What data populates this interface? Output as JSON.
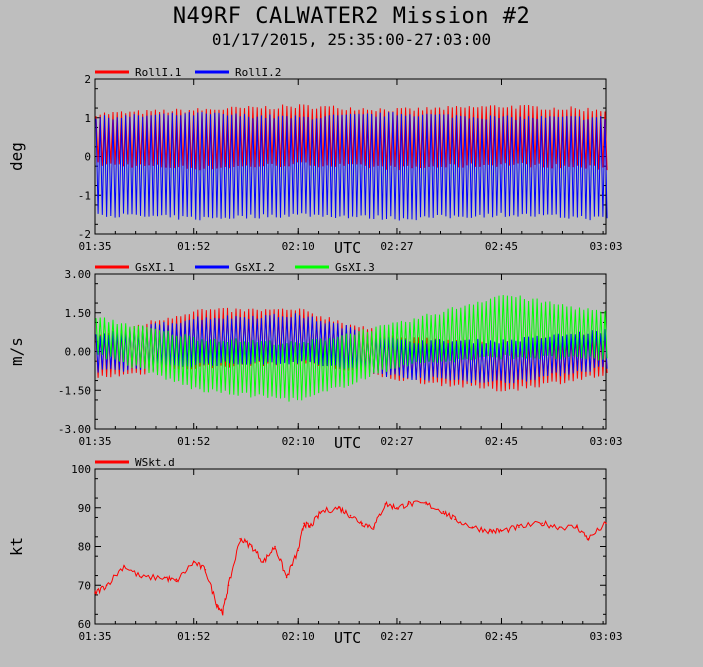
{
  "title": "N49RF CALWATER2 Mission #2",
  "subtitle": "01/17/2015, 25:35:00-27:03:00",
  "xaxis": {
    "label": "UTC",
    "ticks": [
      "01:35",
      "01:52",
      "02:10",
      "02:27",
      "02:45",
      "03:03"
    ]
  },
  "colors": {
    "red": "#ff0000",
    "blue": "#0000ff",
    "green": "#00ff00",
    "background": "#bebebe"
  },
  "chart_data": [
    {
      "type": "line",
      "ylabel": "deg",
      "ylim": [
        -2,
        2
      ],
      "yticks": [
        "2",
        "1",
        "0",
        "-1",
        "-2"
      ],
      "x": [
        "01:35",
        "01:52",
        "02:10",
        "02:27",
        "02:45",
        "03:03"
      ],
      "series": [
        {
          "name": "RollI.1",
          "color": "#ff0000",
          "upper": [
            1.1,
            1.2,
            1.3,
            1.2,
            1.3,
            1.2
          ],
          "lower": [
            -0.2,
            -0.3,
            -0.2,
            -0.3,
            -0.2,
            -0.3
          ]
        },
        {
          "name": "RollI.2",
          "color": "#0000ff",
          "upper": [
            1.0,
            1.1,
            1.0,
            1.1,
            1.0,
            1.0
          ],
          "lower": [
            -1.5,
            -1.6,
            -1.5,
            -1.6,
            -1.5,
            -1.6
          ]
        }
      ]
    },
    {
      "type": "line",
      "ylabel": "m/s",
      "ylim": [
        -3,
        3
      ],
      "yticks": [
        "3.00",
        "1.50",
        "0.00",
        "-1.50",
        "-3.00"
      ],
      "x": [
        "01:35",
        "01:52",
        "02:10",
        "02:27",
        "02:45",
        "03:03"
      ],
      "series": [
        {
          "name": "GsXI.1",
          "color": "#ff0000",
          "center": [
            -0.2,
            0.5,
            0.6,
            -0.3,
            -0.6,
            -0.1
          ],
          "amplitude": [
            0.8,
            1.1,
            1.0,
            0.8,
            0.9,
            0.8
          ]
        },
        {
          "name": "GsXI.2",
          "color": "#0000ff",
          "center": [
            -0.1,
            0.4,
            0.5,
            -0.3,
            -0.4,
            0.1
          ],
          "amplitude": [
            0.7,
            0.9,
            0.9,
            0.7,
            0.8,
            0.7
          ]
        },
        {
          "name": "GsXI.3",
          "color": "#00ff00",
          "center": [
            0.6,
            -0.5,
            -0.8,
            0.3,
            1.0,
            0.6
          ],
          "amplitude": [
            0.7,
            1.0,
            1.1,
            0.8,
            1.2,
            0.9
          ]
        }
      ]
    },
    {
      "type": "line",
      "ylabel": "kt",
      "ylim": [
        60,
        100
      ],
      "yticks": [
        "100",
        "90",
        "80",
        "70",
        "60"
      ],
      "series": [
        {
          "name": "WSkt.d",
          "color": "#ff0000",
          "x": [
            "01:35",
            "01:37",
            "01:40",
            "01:43",
            "01:47",
            "01:49",
            "01:52",
            "01:54",
            "01:56",
            "01:57",
            "01:58",
            "02:00",
            "02:02",
            "02:04",
            "02:06",
            "02:08",
            "02:10",
            "02:11",
            "02:12",
            "02:14",
            "02:17",
            "02:19",
            "02:21",
            "02:23",
            "02:25",
            "02:27",
            "02:29",
            "02:32",
            "02:35",
            "02:37",
            "02:40",
            "02:43",
            "02:45",
            "02:48",
            "02:52",
            "02:55",
            "02:58",
            "03:00",
            "03:03"
          ],
          "y": [
            68,
            70,
            75,
            72,
            72,
            71,
            76,
            74,
            65,
            63,
            70,
            82,
            80,
            76,
            80,
            72,
            79,
            86,
            85,
            89,
            90,
            88,
            86,
            85,
            91,
            90,
            91,
            91,
            89,
            87,
            85,
            84,
            84,
            85,
            86,
            85,
            85,
            82,
            86
          ]
        }
      ]
    }
  ]
}
